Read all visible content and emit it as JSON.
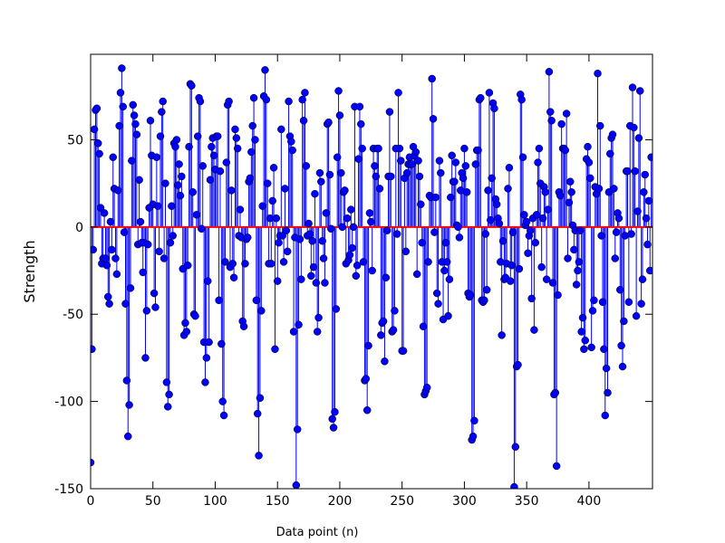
{
  "chart_data": {
    "type": "stem",
    "xlabel": "Data point (n)",
    "ylabel": "Strength",
    "xlim": [
      0,
      451
    ],
    "ylim": [
      -150,
      99
    ],
    "xticks": [
      0,
      50,
      100,
      150,
      200,
      250,
      300,
      350,
      400
    ],
    "yticks": [
      -150,
      -100,
      -50,
      0,
      50
    ],
    "baseline_color": "#ff0000",
    "series": [
      {
        "color": "#0000ff",
        "values": [
          -135,
          -70,
          -13,
          56,
          67,
          68,
          48,
          42,
          11,
          -21,
          -18,
          8,
          -18,
          -22,
          -40,
          -44,
          3,
          -13,
          40,
          22,
          -18,
          -27,
          21,
          58,
          77,
          91,
          69,
          -3,
          -44,
          -88,
          -120,
          -102,
          -35,
          38,
          70,
          64,
          59,
          53,
          -10,
          27,
          3,
          -9,
          -26,
          -9,
          -75,
          -48,
          -10,
          11,
          61,
          41,
          13,
          -38,
          -46,
          40,
          12,
          -14,
          52,
          66,
          72,
          -18,
          25,
          -89,
          -103,
          -96,
          -9,
          12,
          -5,
          48,
          46,
          50,
          24,
          36,
          18,
          29,
          -24,
          -62,
          -55,
          -60,
          -22,
          46,
          82,
          81,
          20,
          -50,
          -51,
          7,
          52,
          74,
          72,
          -1,
          35,
          -66,
          -89,
          -75,
          -31,
          -66,
          27,
          46,
          51,
          41,
          33,
          52,
          52,
          -42,
          32,
          -67,
          -100,
          -108,
          -20,
          37,
          70,
          72,
          -23,
          21,
          -21,
          -29,
          56,
          51,
          45,
          -5,
          10,
          -6,
          -54,
          -57,
          -21,
          -7,
          -6,
          26,
          28,
          43,
          58,
          74,
          50,
          -42,
          -107,
          -131,
          -98,
          -48,
          12,
          75,
          90,
          73,
          25,
          -21,
          5,
          -21,
          15,
          34,
          -70,
          5,
          -31,
          -9,
          -5,
          56,
          -5,
          -20,
          22,
          -2,
          -14,
          72,
          52,
          49,
          44,
          -60,
          -6,
          -148,
          -116,
          -56,
          -7,
          -30,
          73,
          61,
          77,
          35,
          -5,
          2,
          -4,
          -28,
          -8,
          -23,
          19,
          -32,
          -60,
          -52,
          31,
          26,
          -8,
          -18,
          -32,
          8,
          59,
          60,
          30,
          -1,
          -110,
          -115,
          -106,
          -47,
          40,
          78,
          64,
          31,
          0,
          20,
          21,
          -21,
          5,
          -19,
          -16,
          10,
          -12,
          0,
          69,
          -28,
          -22,
          39,
          69,
          59,
          45,
          -20,
          -88,
          -87,
          -105,
          -68,
          8,
          3,
          -25,
          45,
          35,
          29,
          45,
          45,
          22,
          -62,
          -55,
          -54,
          -77,
          -29,
          -2,
          29,
          66,
          29,
          -60,
          -59,
          -48,
          45,
          -4,
          77,
          45,
          38,
          -71,
          -71,
          28,
          -14,
          31,
          36,
          40,
          36,
          36,
          46,
          41,
          43,
          -27,
          38,
          29,
          13,
          -9,
          -57,
          -96,
          -94,
          -92,
          -20,
          18,
          17,
          85,
          62,
          -3,
          17,
          -38,
          -44,
          38,
          31,
          -20,
          -53,
          -25,
          -9,
          -20,
          -51,
          -30,
          17,
          41,
          26,
          26,
          37,
          1,
          0,
          -6,
          21,
          31,
          28,
          45,
          35,
          20,
          -38,
          -40,
          -39,
          -122,
          -120,
          -111,
          36,
          44,
          44,
          73,
          74,
          -42,
          -43,
          -42,
          -4,
          -36,
          21,
          77,
          4,
          28,
          71,
          68,
          16,
          13,
          5,
          2,
          -20,
          -62,
          -8,
          -30,
          -29,
          -21,
          22,
          34,
          -31,
          -22,
          -3,
          -149,
          -126,
          -80,
          -79,
          -24,
          76,
          73,
          40,
          7,
          1,
          3,
          -15,
          -5,
          -2,
          -41,
          5,
          -59,
          -9,
          7,
          37,
          45,
          25,
          -23,
          5,
          23,
          20,
          -30,
          10,
          89,
          66,
          61,
          -32,
          -96,
          -95,
          -137,
          -39,
          20,
          18,
          59,
          45,
          45,
          44,
          65,
          -18,
          14,
          26,
          20,
          1,
          -13,
          -2,
          -33,
          -25,
          -20,
          -2,
          -60,
          -52,
          -70,
          -65,
          39,
          46,
          37,
          28,
          -69,
          -48,
          -42,
          23,
          19,
          88,
          22,
          58,
          -5,
          -43,
          -70,
          -108,
          -81,
          -95,
          20,
          42,
          51,
          53,
          22,
          -18,
          -3,
          8,
          5,
          -36,
          -68,
          -80,
          -54,
          -5,
          32,
          32,
          -43,
          58,
          -4,
          80,
          57,
          32,
          -51,
          9,
          51,
          78,
          -44,
          -30,
          20,
          30,
          5,
          -10,
          15,
          -25,
          40
        ]
      }
    ]
  }
}
